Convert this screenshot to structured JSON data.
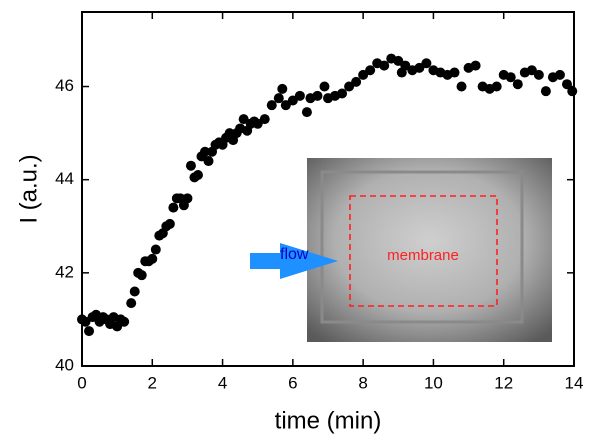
{
  "chart_data": {
    "type": "scatter",
    "xlabel": "time (min)",
    "ylabel": "I (a.u.)",
    "annotations": [
      "flow",
      "membrane"
    ],
    "color": "#000000",
    "xlim": [
      0,
      14
    ],
    "ylim": [
      40,
      47.6
    ],
    "xticks": [
      0,
      2,
      4,
      6,
      8,
      10,
      12,
      14
    ],
    "yticks": [
      40,
      42,
      44,
      46
    ],
    "x": [
      0,
      0.1,
      0.2,
      0.3,
      0.4,
      0.5,
      0.6,
      0.7,
      0.8,
      0.9,
      1.0,
      1.1,
      1.2,
      1.4,
      1.5,
      1.6,
      1.7,
      1.8,
      1.9,
      2.0,
      2.1,
      2.2,
      2.3,
      2.4,
      2.5,
      2.6,
      2.7,
      2.8,
      2.9,
      3.0,
      3.1,
      3.2,
      3.3,
      3.4,
      3.5,
      3.6,
      3.7,
      3.8,
      3.9,
      4.0,
      4.1,
      4.2,
      4.3,
      4.4,
      4.5,
      4.6,
      4.7,
      4.8,
      4.9,
      5.0,
      5.2,
      5.4,
      5.6,
      5.7,
      5.8,
      6.0,
      6.2,
      6.4,
      6.5,
      6.7,
      6.9,
      7.0,
      7.2,
      7.4,
      7.6,
      7.8,
      8.0,
      8.2,
      8.4,
      8.6,
      8.8,
      9.0,
      9.1,
      9.2,
      9.4,
      9.6,
      9.8,
      10.0,
      10.2,
      10.4,
      10.6,
      10.8,
      11.0,
      11.2,
      11.4,
      11.6,
      11.8,
      12.0,
      12.2,
      12.4,
      12.6,
      12.8,
      13.0,
      13.2,
      13.4,
      13.6,
      13.8,
      13.95
    ],
    "values": [
      41.0,
      40.95,
      40.75,
      41.05,
      41.1,
      40.95,
      41.05,
      41.0,
      40.9,
      41.05,
      40.85,
      41.0,
      40.95,
      41.35,
      41.6,
      42.0,
      41.95,
      42.25,
      42.25,
      42.3,
      42.5,
      42.8,
      42.85,
      43.0,
      43.05,
      43.4,
      43.6,
      43.6,
      43.45,
      43.6,
      44.3,
      44.05,
      44.1,
      44.5,
      44.6,
      44.4,
      44.6,
      44.75,
      44.8,
      44.75,
      44.9,
      45.0,
      44.85,
      45.0,
      45.1,
      45.3,
      45.05,
      45.2,
      45.25,
      45.2,
      45.3,
      45.6,
      45.75,
      45.95,
      45.6,
      45.7,
      45.8,
      45.45,
      45.75,
      45.8,
      46.0,
      45.75,
      45.8,
      45.85,
      46.0,
      46.1,
      46.25,
      46.35,
      46.5,
      46.45,
      46.6,
      46.55,
      46.3,
      46.45,
      46.35,
      46.4,
      46.5,
      46.35,
      46.3,
      46.25,
      46.3,
      46.0,
      46.4,
      46.45,
      46.0,
      45.95,
      46.0,
      46.25,
      46.2,
      46.05,
      46.3,
      46.35,
      46.25,
      45.9,
      46.2,
      46.25,
      46.05,
      45.9
    ]
  }
}
